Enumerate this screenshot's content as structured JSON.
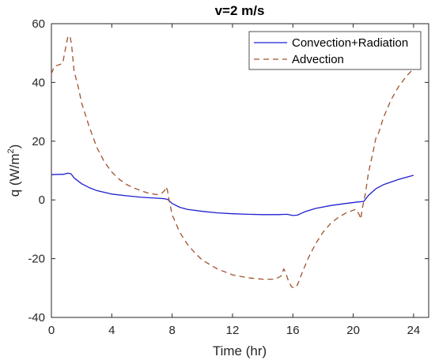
{
  "chart_data": {
    "type": "line",
    "title": "v=2 m/s",
    "xlabel": "Time (hr)",
    "ylabel": {
      "main": "q (W/m",
      "sup": "2",
      "close": ")"
    },
    "xlim": [
      0,
      25
    ],
    "ylim": [
      -40,
      60
    ],
    "xticks": [
      0,
      4,
      8,
      12,
      16,
      20,
      24
    ],
    "yticks": [
      -40,
      -20,
      0,
      20,
      40,
      60
    ],
    "grid": false,
    "legend_position": "top-right",
    "series": [
      {
        "name": "Convection+Radiation",
        "color": "#1f1fcf",
        "dash": "solid",
        "points": [
          [
            0,
            8.6
          ],
          [
            0.5,
            8.7
          ],
          [
            0.8,
            8.7
          ],
          [
            1.1,
            9.1
          ],
          [
            1.3,
            8.9
          ],
          [
            1.5,
            7.5
          ],
          [
            2,
            5.5
          ],
          [
            2.5,
            4.2
          ],
          [
            3,
            3.2
          ],
          [
            4,
            2.0
          ],
          [
            5,
            1.4
          ],
          [
            6,
            0.9
          ],
          [
            7,
            0.6
          ],
          [
            7.5,
            0.4
          ],
          [
            7.7,
            0.2
          ],
          [
            8,
            -1.2
          ],
          [
            8.5,
            -2.5
          ],
          [
            9,
            -3.2
          ],
          [
            10,
            -3.9
          ],
          [
            11,
            -4.4
          ],
          [
            12,
            -4.7
          ],
          [
            13,
            -4.9
          ],
          [
            14,
            -5.0
          ],
          [
            15,
            -5.0
          ],
          [
            15.6,
            -4.9
          ],
          [
            16,
            -5.3
          ],
          [
            16.3,
            -5.2
          ],
          [
            16.8,
            -4.0
          ],
          [
            17.5,
            -2.9
          ],
          [
            18.5,
            -1.9
          ],
          [
            19.5,
            -1.2
          ],
          [
            20.3,
            -0.7
          ],
          [
            20.7,
            -0.5
          ],
          [
            21,
            1.5
          ],
          [
            21.5,
            3.8
          ],
          [
            22,
            5.2
          ],
          [
            23,
            7.0
          ],
          [
            24,
            8.4
          ]
        ]
      },
      {
        "name": "Advection",
        "color": "#a0522d",
        "dash": "7,5",
        "points": [
          [
            0,
            43
          ],
          [
            0.2,
            45.5
          ],
          [
            0.5,
            46
          ],
          [
            0.75,
            46.5
          ],
          [
            0.95,
            52
          ],
          [
            1.1,
            55.8
          ],
          [
            1.25,
            55.5
          ],
          [
            1.35,
            52
          ],
          [
            1.5,
            44
          ],
          [
            1.8,
            38
          ],
          [
            2,
            33
          ],
          [
            2.5,
            25
          ],
          [
            3,
            18
          ],
          [
            3.5,
            13
          ],
          [
            4,
            9.5
          ],
          [
            4.5,
            7
          ],
          [
            5,
            5.2
          ],
          [
            5.5,
            4
          ],
          [
            6,
            3
          ],
          [
            6.5,
            2.2
          ],
          [
            7,
            1.8
          ],
          [
            7.3,
            2.2
          ],
          [
            7.5,
            3.2
          ],
          [
            7.6,
            4.5
          ],
          [
            7.7,
            3.0
          ],
          [
            7.8,
            0
          ],
          [
            8,
            -5
          ],
          [
            8.5,
            -11
          ],
          [
            9,
            -15
          ],
          [
            9.5,
            -18
          ],
          [
            10,
            -20.5
          ],
          [
            11,
            -23.5
          ],
          [
            12,
            -25.5
          ],
          [
            13,
            -26.5
          ],
          [
            14,
            -27
          ],
          [
            14.8,
            -27
          ],
          [
            15.2,
            -26
          ],
          [
            15.4,
            -23.5
          ],
          [
            15.5,
            -24.5
          ],
          [
            15.7,
            -27.5
          ],
          [
            15.9,
            -29.5
          ],
          [
            16.1,
            -30
          ],
          [
            16.3,
            -29
          ],
          [
            16.6,
            -25
          ],
          [
            17,
            -20
          ],
          [
            17.5,
            -15
          ],
          [
            18,
            -11
          ],
          [
            18.5,
            -8
          ],
          [
            19,
            -6
          ],
          [
            19.5,
            -4.5
          ],
          [
            20,
            -3.5
          ],
          [
            20.2,
            -3.2
          ],
          [
            20.4,
            -5
          ],
          [
            20.5,
            -6.5
          ],
          [
            20.6,
            -3
          ],
          [
            20.8,
            2
          ],
          [
            21,
            9
          ],
          [
            21.3,
            16
          ],
          [
            21.5,
            21
          ],
          [
            21.7,
            23
          ],
          [
            22,
            28
          ],
          [
            22.5,
            34
          ],
          [
            23,
            38.5
          ],
          [
            23.5,
            42
          ],
          [
            24,
            44.7
          ]
        ]
      }
    ]
  }
}
